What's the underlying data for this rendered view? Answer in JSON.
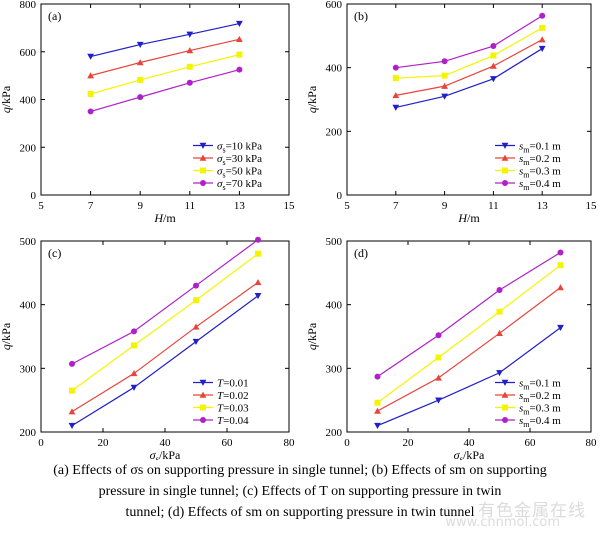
{
  "chart_data": [
    {
      "type": "line",
      "panel_label": "(a)",
      "xlabel": "H/m",
      "ylabel": "q/kPa",
      "xlim": [
        5,
        15
      ],
      "ylim": [
        0,
        800
      ],
      "xticks": [
        5,
        7,
        9,
        11,
        13,
        15
      ],
      "yticks": [
        0,
        200,
        400,
        600,
        800
      ],
      "x": [
        7,
        9,
        11,
        13
      ],
      "legend_position": "bottom-right",
      "legend_var": "σ",
      "legend_sub": "s",
      "series": [
        {
          "name": "=10 kPa",
          "values": [
            580,
            630,
            673,
            718
          ],
          "color": "#2020c8",
          "marker": "tri-down"
        },
        {
          "name": "=30 kPa",
          "values": [
            500,
            555,
            605,
            652
          ],
          "color": "#e8443a",
          "marker": "tri-up"
        },
        {
          "name": "=50 kPa",
          "values": [
            423,
            482,
            537,
            588
          ],
          "color": "#f4f400",
          "marker": "square"
        },
        {
          "name": "=70 kPa",
          "values": [
            350,
            410,
            470,
            525
          ],
          "color": "#b020c8",
          "marker": "circle"
        }
      ]
    },
    {
      "type": "line",
      "panel_label": "(b)",
      "xlabel": "H/m",
      "ylabel": "q/kPa",
      "xlim": [
        5,
        15
      ],
      "ylim": [
        0,
        600
      ],
      "xticks": [
        5,
        7,
        9,
        11,
        13,
        15
      ],
      "yticks": [
        0,
        200,
        400,
        600
      ],
      "x": [
        7,
        9,
        11,
        13
      ],
      "legend_position": "bottom-right",
      "legend_var": "s",
      "legend_sub": "m",
      "series": [
        {
          "name": "=0.1 m",
          "values": [
            275,
            310,
            365,
            460
          ],
          "color": "#2020c8",
          "marker": "tri-down"
        },
        {
          "name": "=0.2 m",
          "values": [
            313,
            342,
            405,
            488
          ],
          "color": "#e8443a",
          "marker": "tri-up"
        },
        {
          "name": "=0.3 m",
          "values": [
            367,
            375,
            438,
            525
          ],
          "color": "#f4f400",
          "marker": "square"
        },
        {
          "name": "=0.4 m",
          "values": [
            400,
            420,
            468,
            563
          ],
          "color": "#b020c8",
          "marker": "circle"
        }
      ]
    },
    {
      "type": "line",
      "panel_label": "(c)",
      "xlabel": "σs/kPa",
      "ylabel": "q/kPa",
      "xlim": [
        0,
        80
      ],
      "ylim": [
        200,
        500
      ],
      "xticks": [
        0,
        20,
        40,
        60,
        80
      ],
      "yticks": [
        200,
        300,
        400,
        500
      ],
      "x": [
        10,
        30,
        50,
        70
      ],
      "legend_position": "bottom-right",
      "legend_var": "T",
      "legend_sub": "",
      "series": [
        {
          "name": "=0.01",
          "values": [
            210,
            270,
            342,
            414
          ],
          "color": "#2020c8",
          "marker": "tri-down"
        },
        {
          "name": "=0.02",
          "values": [
            232,
            292,
            365,
            435
          ],
          "color": "#e8443a",
          "marker": "tri-up"
        },
        {
          "name": "=0.03",
          "values": [
            265,
            336,
            407,
            480
          ],
          "color": "#f4f400",
          "marker": "square"
        },
        {
          "name": "=0.04",
          "values": [
            307,
            358,
            430,
            502
          ],
          "color": "#b020c8",
          "marker": "circle"
        }
      ]
    },
    {
      "type": "line",
      "panel_label": "(d)",
      "xlabel": "σs/kPa",
      "ylabel": "q/kPa",
      "xlim": [
        0,
        80
      ],
      "ylim": [
        200,
        500
      ],
      "xticks": [
        0,
        20,
        40,
        60,
        80
      ],
      "yticks": [
        200,
        300,
        400,
        500
      ],
      "x": [
        10,
        30,
        50,
        70
      ],
      "legend_position": "bottom-right",
      "legend_var": "s",
      "legend_sub": "m",
      "series": [
        {
          "name": "=0.1 m",
          "values": [
            210,
            250,
            293,
            364
          ],
          "color": "#2020c8",
          "marker": "tri-down"
        },
        {
          "name": "=0.2 m",
          "values": [
            233,
            285,
            355,
            427
          ],
          "color": "#e8443a",
          "marker": "tri-up"
        },
        {
          "name": "=0.3 m",
          "values": [
            246,
            317,
            389,
            462
          ],
          "color": "#f4f400",
          "marker": "square"
        },
        {
          "name": "=0.4 m",
          "values": [
            287,
            352,
            423,
            482
          ],
          "color": "#b020c8",
          "marker": "circle"
        }
      ]
    }
  ],
  "caption": {
    "line1": "(a) Effects of σs on supporting pressure  in single tunnel; (b) Effects of sm on supporting",
    "line2": "pressure in single tunnel; (c) Effects of T on supporting pressure in twin",
    "line3": "tunnel; (d) Effects of sm on supporting pressure in twin tunnel"
  },
  "watermark": {
    "text": "有色金属在线",
    "url": "www.cnnmol.com"
  }
}
